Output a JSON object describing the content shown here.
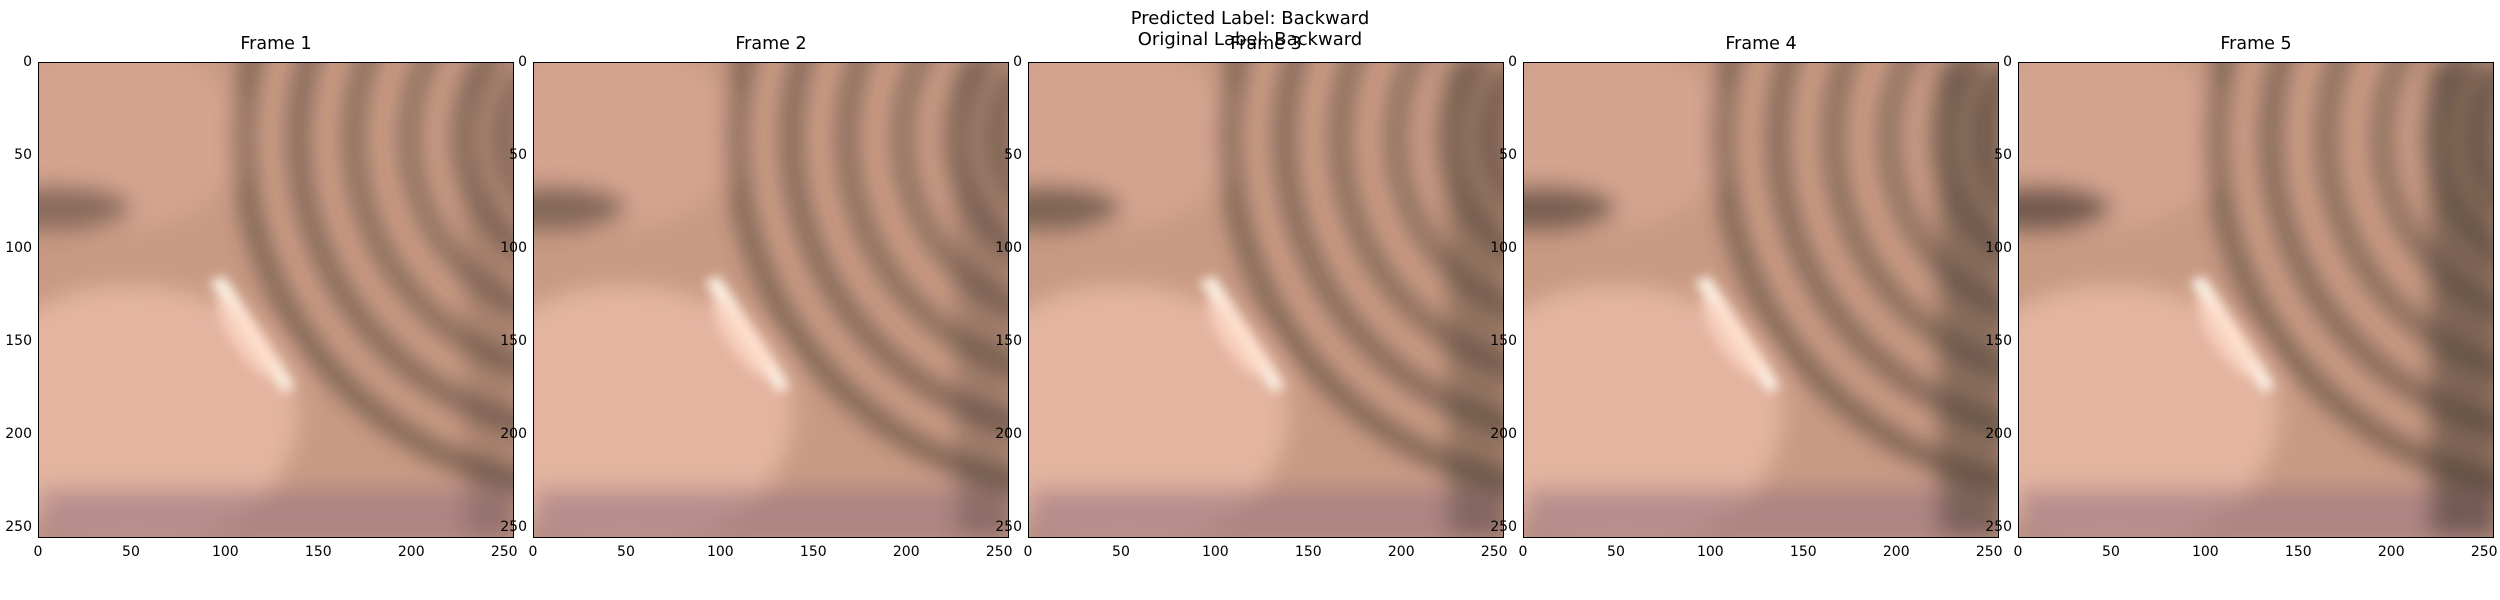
{
  "figure": {
    "predicted_label": "Predicted Label: Backward",
    "original_label": "Original Label: Backward"
  },
  "frames": [
    {
      "title": "Frame 1",
      "shift": 0
    },
    {
      "title": "Frame 2",
      "shift": 1
    },
    {
      "title": "Frame 3",
      "shift": 2
    },
    {
      "title": "Frame 4",
      "shift": 3
    },
    {
      "title": "Frame 5",
      "shift": 4
    }
  ],
  "axes": {
    "x_ticks": [
      "0",
      "50",
      "100",
      "150",
      "200",
      "250"
    ],
    "y_ticks": [
      "0",
      "50",
      "100",
      "150",
      "200",
      "250"
    ],
    "x_range": [
      0,
      256
    ],
    "y_range": [
      0,
      256
    ]
  },
  "colors": {
    "tissue_base": "#c89a84",
    "tissue_light": "#e9b8a6",
    "fold_dark": "#4a3d33",
    "highlight": "#fff7ea",
    "lower_purple": "#9b7680"
  }
}
